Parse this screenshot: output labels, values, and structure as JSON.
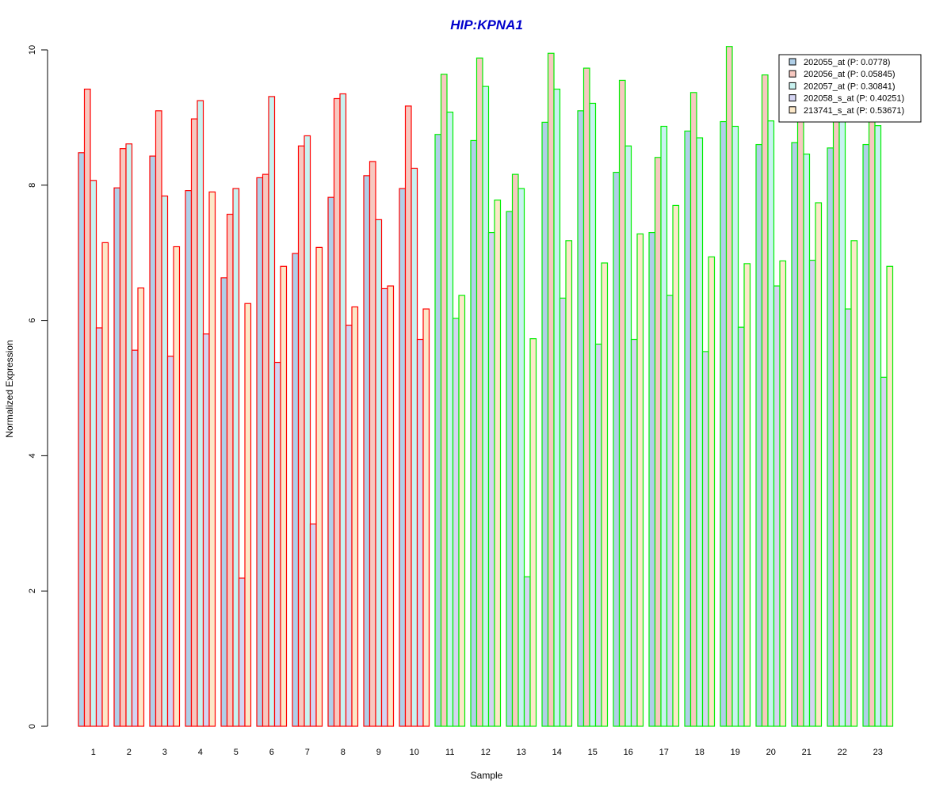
{
  "chart_data": {
    "type": "bar",
    "title": "HIP:KPNA1",
    "xlabel": "Sample",
    "ylabel": "Normalized Expression",
    "ylim": [
      0,
      10
    ],
    "yticks": [
      "0",
      "2",
      "4",
      "6",
      "8",
      "10"
    ],
    "categories": [
      "1",
      "2",
      "3",
      "4",
      "5",
      "6",
      "7",
      "8",
      "9",
      "10",
      "11",
      "12",
      "13",
      "14",
      "15",
      "16",
      "17",
      "18",
      "19",
      "20",
      "21",
      "22",
      "23"
    ],
    "group_colors": [
      "#ff0000",
      "#ff0000",
      "#ff0000",
      "#ff0000",
      "#ff0000",
      "#ff0000",
      "#ff0000",
      "#ff0000",
      "#ff0000",
      "#ff0000",
      "#00ee00",
      "#00ee00",
      "#00ee00",
      "#00ee00",
      "#00ee00",
      "#00ee00",
      "#00ee00",
      "#00ee00",
      "#00ee00",
      "#00ee00",
      "#00ee00",
      "#00ee00",
      "#00ee00"
    ],
    "grid": false,
    "legend_position": "top-right",
    "series": [
      {
        "name": "202055_at (P: 0.0778)",
        "fill": "#b0cfe8",
        "values": [
          8.48,
          7.96,
          8.43,
          7.92,
          6.63,
          8.11,
          6.99,
          7.82,
          8.14,
          7.95,
          8.75,
          8.66,
          7.61,
          8.93,
          9.1,
          8.19,
          7.3,
          8.8,
          8.94,
          8.6,
          8.63,
          8.55,
          8.6
        ]
      },
      {
        "name": "202056_at (P: 0.05845)",
        "fill": "#f7c8c0",
        "values": [
          9.42,
          8.54,
          9.1,
          8.98,
          7.57,
          8.16,
          8.58,
          9.28,
          8.35,
          9.17,
          9.64,
          9.88,
          8.16,
          9.95,
          9.73,
          9.55,
          8.41,
          9.37,
          10.05,
          9.63,
          9.12,
          9.25,
          9.1
        ]
      },
      {
        "name": "202057_at (P: 0.30841)",
        "fill": "#c8f2f0",
        "values": [
          8.07,
          8.61,
          7.84,
          9.25,
          7.95,
          9.31,
          8.73,
          9.35,
          7.49,
          8.25,
          9.08,
          9.46,
          7.95,
          9.42,
          9.21,
          8.58,
          8.87,
          8.7,
          8.87,
          8.95,
          8.46,
          9.12,
          8.88
        ]
      },
      {
        "name": "202058_s_at (P: 0.40251)",
        "fill": "#d4d4f2",
        "values": [
          5.89,
          5.56,
          5.47,
          5.8,
          2.19,
          5.38,
          2.99,
          5.93,
          6.47,
          5.72,
          6.03,
          7.3,
          2.21,
          6.33,
          5.65,
          5.72,
          6.37,
          5.54,
          5.9,
          6.51,
          6.89,
          6.17,
          5.16
        ]
      },
      {
        "name": "213741_s_at (P: 0.53671)",
        "fill": "#fce8c8",
        "values": [
          7.15,
          6.48,
          7.09,
          7.9,
          6.25,
          6.8,
          7.08,
          6.2,
          6.51,
          6.17,
          6.37,
          7.78,
          5.73,
          7.18,
          6.85,
          7.28,
          7.7,
          6.94,
          6.84,
          6.88,
          7.74,
          7.18,
          6.8
        ]
      }
    ]
  }
}
